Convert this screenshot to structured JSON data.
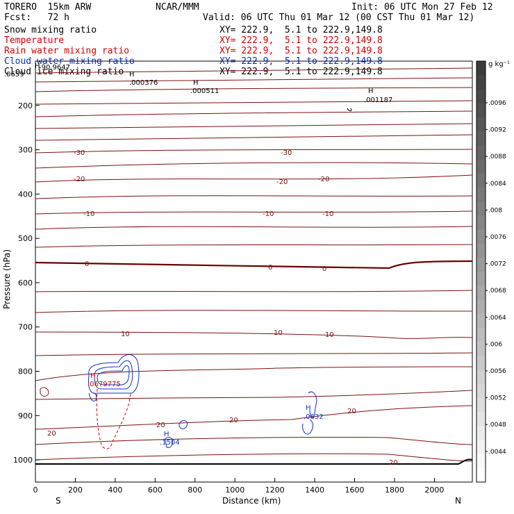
{
  "header": {
    "model": "TORERO  15km ARW",
    "org": "NCAR/MMM",
    "init": "Init: 06 UTC Mon 27 Feb 12",
    "fcst": "Fcst:   72 h",
    "valid": "Valid: 06 UTC Thu 01 Mar 12 (00 CST Thu 01 Mar 12)"
  },
  "legend": [
    {
      "name": "Snow mixing ratio",
      "xy": "XY= 222.9,  5.1 to 222.9,149.8",
      "color": "#000000"
    },
    {
      "name": "Temperature",
      "xy": "XY= 222.9,  5.1 to 222.9,149.8",
      "color": "#d00000"
    },
    {
      "name": "Rain water mixing ratio",
      "xy": "XY= 222.9,  5.1 to 222.9,149.8",
      "color": "#d00000"
    },
    {
      "name": "Cloud water mixing ratio",
      "xy": "XY= 222.9,  5.1 to 222.9,149.8",
      "color": "#1030c0"
    },
    {
      "name": "Cloud ice mixing ratio",
      "xy": "XY= 222.9,  5.1 to 222.9,149.8",
      "color": "#000000"
    }
  ],
  "colorbar": {
    "unit_label": "g kg⁻¹",
    "tick_labels": [
      ".0096",
      ".0092",
      ".0088",
      ".0084",
      ".008",
      ".0076",
      ".0072",
      ".0068",
      ".0064",
      ".006",
      ".0056",
      ".0052",
      ".0048",
      ".0044"
    ]
  },
  "chart_data": {
    "type": "cross-section contour",
    "xlabel": "Distance (km)",
    "ylabel": "Pressure (hPa)",
    "xlim": [
      0,
      2190
    ],
    "ylim": [
      1050,
      100
    ],
    "x_ticks": [
      "0",
      "200",
      "400",
      "600",
      "800",
      "1000",
      "1200",
      "1400",
      "1600",
      "1800",
      "2000"
    ],
    "y_ticks": [
      "200",
      "300",
      "400",
      "500",
      "600",
      "700",
      "800",
      "900",
      "1000"
    ],
    "y_tick_values": [
      200,
      300,
      400,
      500,
      600,
      700,
      800,
      900,
      1000
    ],
    "x_tick_values": [
      0,
      200,
      400,
      600,
      800,
      1000,
      1200,
      1400,
      1600,
      1800,
      2000
    ],
    "endpoints": {
      "left": "S",
      "right": "N"
    },
    "temperature_labels": [
      "-30",
      "-30",
      "-20",
      "-20",
      "-20",
      "-10",
      "-10",
      "-10",
      "0",
      "0",
      "0",
      "10",
      "10",
      "10",
      "20",
      "20",
      "20",
      "20",
      "20"
    ],
    "extrema_labels": [
      {
        "mark": "H",
        "value": "-90.9647"
      },
      {
        "mark": "H",
        "value": ".000376"
      },
      {
        "mark": "H",
        "value": ".000511"
      },
      {
        "mark": "H",
        "value": ".001187"
      },
      {
        "mark": "H",
        "value": ".0679775"
      },
      {
        "mark": "H",
        "value": ".1504"
      },
      {
        "mark": "H",
        "value": ".0632"
      }
    ],
    "top_text": ".0659",
    "grid": false
  }
}
